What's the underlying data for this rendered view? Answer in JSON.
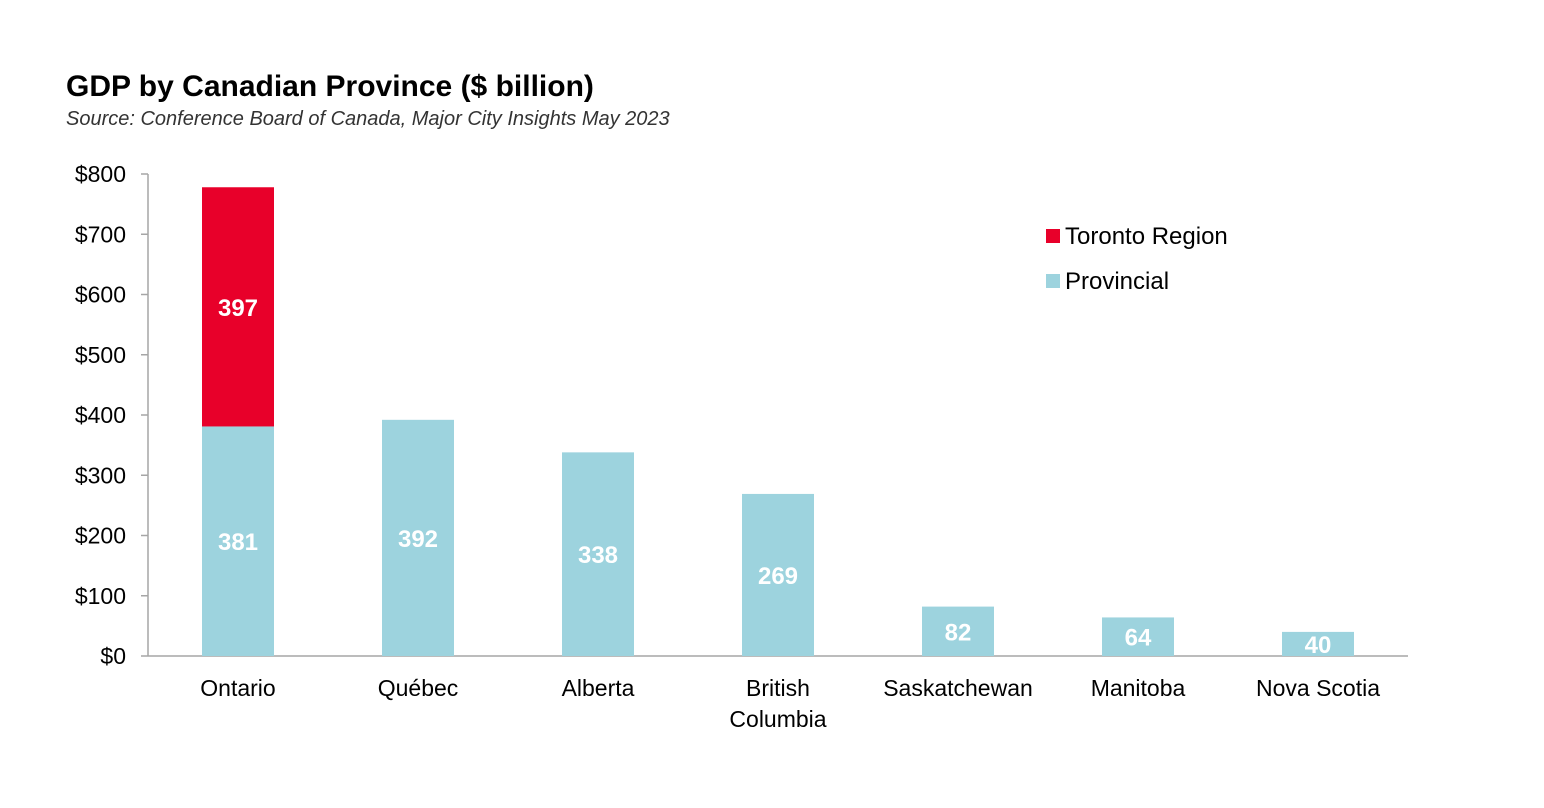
{
  "chart_data": {
    "type": "bar",
    "stacked": true,
    "title": "GDP by Canadian Province ($ billion)",
    "subtitle": "Source: Conference Board of Canada, Major City Insights May 2023",
    "categories": [
      "Ontario",
      "Québec",
      "Alberta",
      "British Columbia",
      "Saskatchewan",
      "Manitoba",
      "Nova Scotia"
    ],
    "category_lines": [
      [
        "Ontario"
      ],
      [
        "Québec"
      ],
      [
        "Alberta"
      ],
      [
        "British",
        "Columbia"
      ],
      [
        "Saskatchewan"
      ],
      [
        "Manitoba"
      ],
      [
        "Nova Scotia"
      ]
    ],
    "series": [
      {
        "name": "Provincial",
        "color": "#9dd3de",
        "values": [
          381,
          392,
          338,
          269,
          82,
          64,
          40
        ]
      },
      {
        "name": "Toronto Region",
        "color": "#e8002a",
        "values": [
          397,
          null,
          null,
          null,
          null,
          null,
          null
        ]
      }
    ],
    "legend_order": [
      "Toronto Region",
      "Provincial"
    ],
    "legend_position": "top-right",
    "ylim": [
      0,
      800
    ],
    "y_ticks": [
      0,
      100,
      200,
      300,
      400,
      500,
      600,
      700,
      800
    ],
    "y_tick_labels": [
      "$0",
      "$100",
      "$200",
      "$300",
      "$400",
      "$500",
      "$600",
      "$700",
      "$800"
    ],
    "xlabel": "",
    "ylabel": "",
    "grid": false
  }
}
